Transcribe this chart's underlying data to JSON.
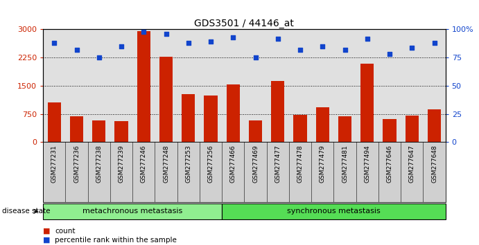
{
  "title": "GDS3501 / 44146_at",
  "samples": [
    "GSM277231",
    "GSM277236",
    "GSM277238",
    "GSM277239",
    "GSM277246",
    "GSM277248",
    "GSM277253",
    "GSM277256",
    "GSM277466",
    "GSM277469",
    "GSM277477",
    "GSM277478",
    "GSM277479",
    "GSM277481",
    "GSM277494",
    "GSM277646",
    "GSM277647",
    "GSM277648"
  ],
  "counts": [
    1050,
    680,
    570,
    560,
    2950,
    2270,
    1270,
    1240,
    1530,
    580,
    1620,
    720,
    920,
    680,
    2080,
    610,
    700,
    870
  ],
  "percentiles": [
    88,
    82,
    75,
    85,
    98,
    96,
    88,
    89,
    93,
    75,
    92,
    82,
    85,
    82,
    92,
    78,
    84,
    88
  ],
  "bar_color": "#cc2200",
  "dot_color": "#1144cc",
  "left_ylim": [
    0,
    3000
  ],
  "right_ylim": [
    0,
    100
  ],
  "left_yticks": [
    0,
    750,
    1500,
    2250,
    3000
  ],
  "right_yticks": [
    0,
    25,
    50,
    75,
    100
  ],
  "right_yticklabels": [
    "0",
    "25",
    "50",
    "75",
    "100%"
  ],
  "grid_lines": [
    750,
    1500,
    2250
  ],
  "metachronous_count": 8,
  "synchronous_count": 10,
  "metachronous_label": "metachronous metastasis",
  "synchronous_label": "synchronous metastasis",
  "meta_color": "#90ee90",
  "sync_color": "#55dd55",
  "disease_state_label": "disease state",
  "legend_count_label": "count",
  "legend_percentile_label": "percentile rank within the sample",
  "background_color": "#ffffff",
  "plot_bg_color": "#e0e0e0",
  "label_bg_color": "#d0d0d0"
}
